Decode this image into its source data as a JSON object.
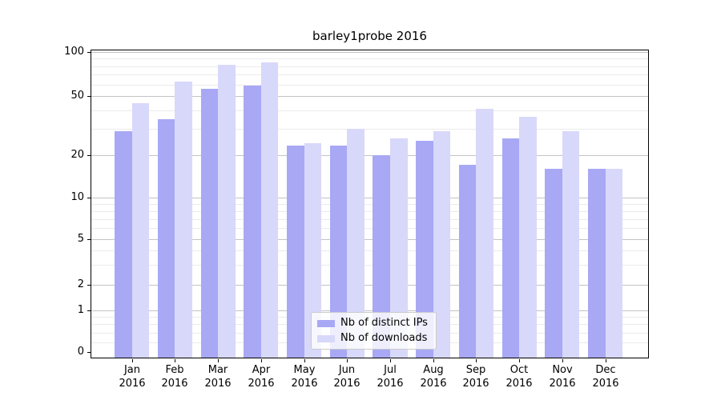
{
  "chart_data": {
    "type": "bar",
    "title": "barley1probe 2016",
    "categories": [
      "Jan 2016",
      "Feb 2016",
      "Mar 2016",
      "Apr 2016",
      "May 2016",
      "Jun 2016",
      "Jul 2016",
      "Aug 2016",
      "Sep 2016",
      "Oct 2016",
      "Nov 2016",
      "Dec 2016"
    ],
    "series": [
      {
        "name": "Nb of distinct IPs",
        "color": "#a8a8f5",
        "values": [
          29,
          35,
          56,
          59,
          23,
          23,
          20,
          25,
          17,
          26,
          16,
          16
        ]
      },
      {
        "name": "Nb of downloads",
        "color": "#d8d8fa",
        "values": [
          45,
          63,
          82,
          85,
          24,
          30,
          26,
          29,
          41,
          36,
          29,
          16
        ]
      }
    ],
    "yscale": "log",
    "ylim": [
      0,
      100
    ],
    "y_tick_labels": [
      "100",
      "50",
      "20",
      "10",
      "5",
      "2",
      "1",
      "0"
    ],
    "xlabel": "",
    "ylabel": "",
    "grid": "on",
    "legend_position": "lower center"
  }
}
